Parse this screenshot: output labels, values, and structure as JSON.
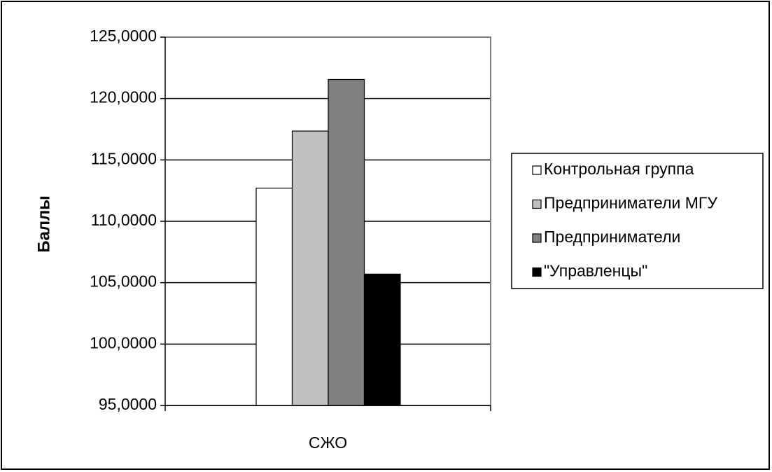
{
  "chart_data": {
    "type": "bar",
    "categories": [
      "СЖО"
    ],
    "series": [
      {
        "name": "Контрольная группа",
        "values": [
          112.7
        ],
        "color": "#ffffff"
      },
      {
        "name": "Предприниматели МГУ",
        "values": [
          117.35
        ],
        "color": "#c0c0c0"
      },
      {
        "name": "Предприниматели",
        "values": [
          121.55
        ],
        "color": "#808080"
      },
      {
        "name": "\"Управленцы\"",
        "values": [
          105.7
        ],
        "color": "#000000"
      }
    ],
    "ylabel": "Баллы",
    "xlabel": "",
    "ylim": [
      95,
      125
    ],
    "yticks": [
      95,
      100,
      105,
      110,
      115,
      120,
      125
    ],
    "ytick_labels": [
      "95,0000",
      "100,0000",
      "105,0000",
      "110,0000",
      "115,0000",
      "120,0000",
      "125,0000"
    ],
    "grid": true,
    "legend_position": "right"
  }
}
